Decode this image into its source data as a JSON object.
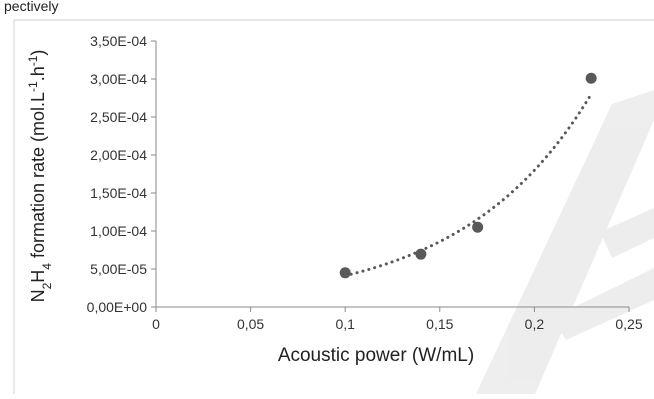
{
  "page": {
    "top_text": "pectively"
  },
  "chart_data": {
    "type": "scatter",
    "xlabel": "Acoustic power (W/mL)",
    "ylabel": {
      "parts": [
        {
          "t": "N",
          "s": "normal"
        },
        {
          "t": "2",
          "s": "sub"
        },
        {
          "t": "H",
          "s": "normal"
        },
        {
          "t": "4",
          "s": "sub"
        },
        {
          "t": " formation rate (mol.L",
          "s": "normal"
        },
        {
          "t": "-1",
          "s": "sup"
        },
        {
          "t": ".h",
          "s": "normal"
        },
        {
          "t": "-1",
          "s": "sup"
        },
        {
          "t": ")",
          "s": "normal"
        }
      ]
    },
    "xlim": [
      0,
      0.25
    ],
    "ylim": [
      0,
      0.00035
    ],
    "xticks": [
      0,
      0.05,
      0.1,
      0.15,
      0.2,
      0.25
    ],
    "xtick_labels": [
      "0",
      "0,05",
      "0,1",
      "0,15",
      "0,2",
      "0,25"
    ],
    "yticks": [
      0,
      5e-05,
      0.0001,
      0.00015,
      0.0002,
      0.00025,
      0.0003,
      0.00035
    ],
    "ytick_labels": [
      "0,00E+00",
      "5,00E-05",
      "1,00E-04",
      "1,50E-04",
      "2,00E-04",
      "2,50E-04",
      "3,00E-04",
      "3,50E-04"
    ],
    "grid": false,
    "series": [
      {
        "points": [
          {
            "x": 0.1,
            "y": 4.5e-05
          },
          {
            "x": 0.14,
            "y": 6.95e-05
          },
          {
            "x": 0.17,
            "y": 0.000105
          },
          {
            "x": 0.23,
            "y": 0.000301
          }
        ],
        "marker_color": "#595959",
        "trendline": {
          "type": "exponential",
          "style": "dotted",
          "color": "#595959",
          "x_range": [
            0.1,
            0.23
          ]
        }
      }
    ]
  }
}
